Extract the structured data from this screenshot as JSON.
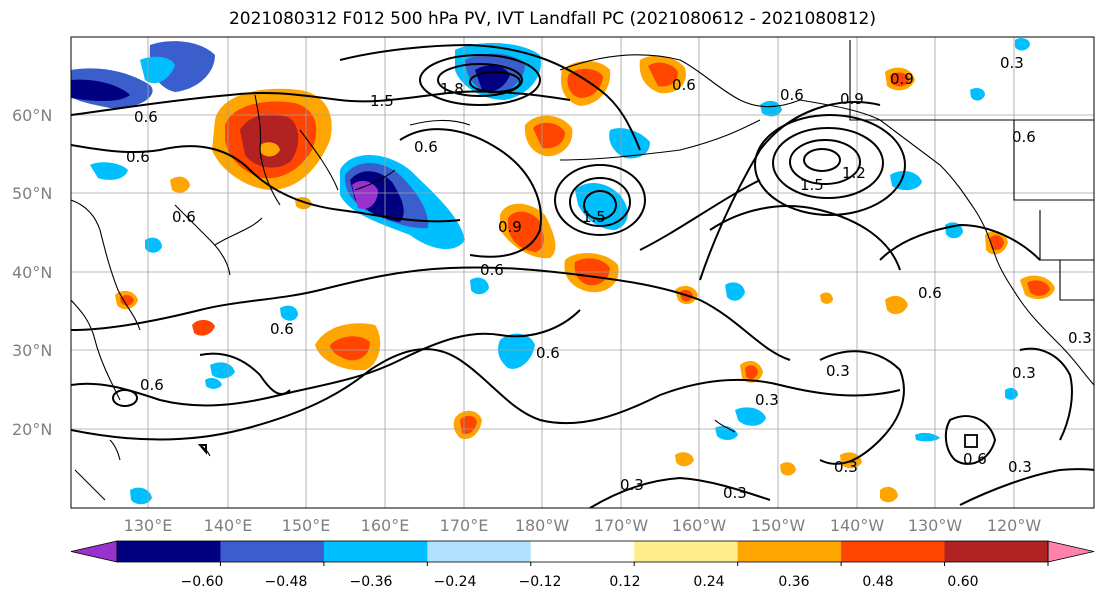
{
  "title": "2021080312 F012 500 hPa PV, IVT Landfall PC (2021080612 - 2021080812)",
  "lat_labels": [
    "60°N",
    "50°N",
    "40°N",
    "30°N",
    "20°N"
  ],
  "lon_labels": [
    "130°E",
    "140°E",
    "150°E",
    "160°E",
    "170°E",
    "180°W",
    "170°W",
    "160°W",
    "150°W",
    "140°W",
    "130°W",
    "120°W"
  ],
  "colorbar": {
    "colors": [
      "#9932cc",
      "#000080",
      "#3a5fcd",
      "#00bfff",
      "#b0e2ff",
      "#ffffff",
      "#ffec8b",
      "#ffa500",
      "#ff4500",
      "#b22222",
      "#ff82ab"
    ],
    "tick_labels": [
      "−0.60",
      "−0.48",
      "−0.36",
      "−0.24",
      "−0.12",
      "0.12",
      "0.24",
      "0.36",
      "0.48",
      "0.60"
    ]
  },
  "contour_labels": [
    "0.6",
    "0.6",
    "1.5",
    "1.8",
    "0.6",
    "0.6",
    "0.6",
    "0.9",
    "0.6",
    "0.9",
    "1.5",
    "0.6",
    "0.6",
    "0.6",
    "0.9",
    "0.6",
    "1.5",
    "1.2",
    "0.6",
    "0.6",
    "0.3",
    "0.3",
    "0.3",
    "0.3",
    "0.3",
    "0.6",
    "0.3",
    "0.3",
    "0.3",
    "0.3"
  ],
  "colors": {
    "land_outline": "#000000",
    "grid": "#a0a0a0",
    "contour": "#000000"
  }
}
